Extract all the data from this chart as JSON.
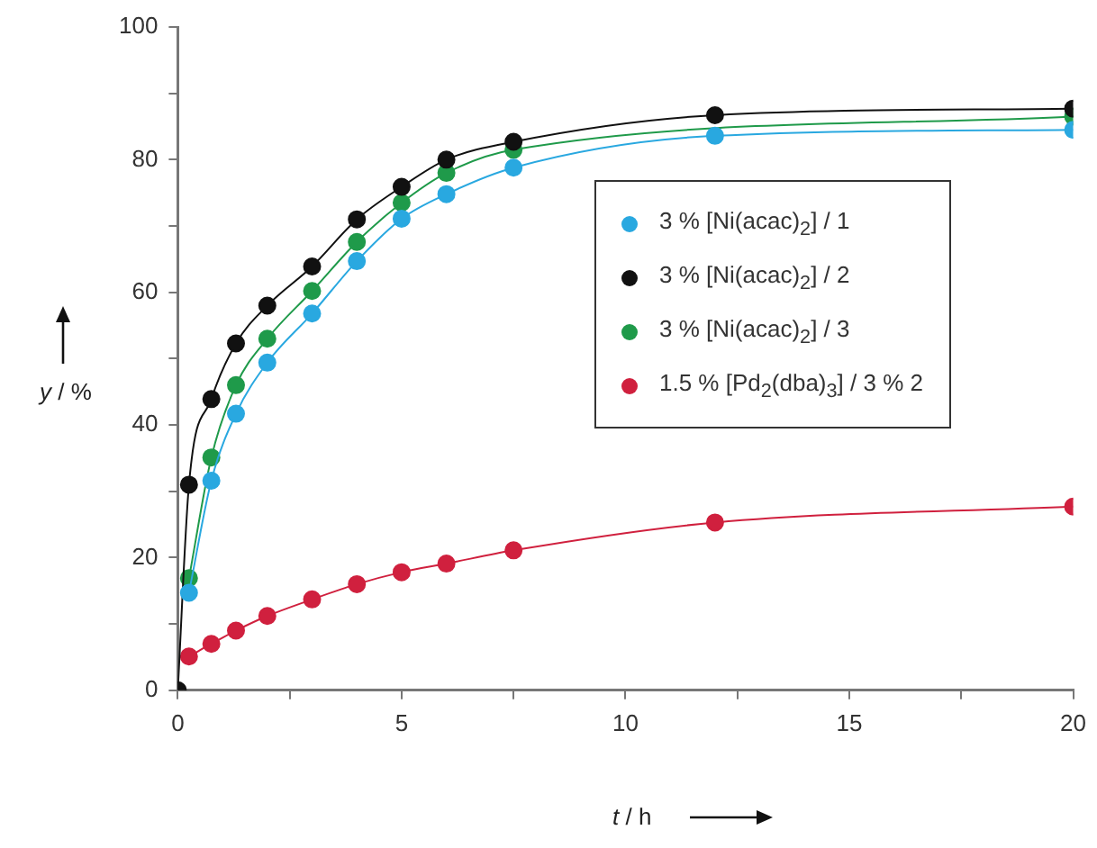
{
  "chart_data": {
    "type": "line",
    "xlabel": "t / h",
    "ylabel": "y / %",
    "xlim": [
      0,
      20
    ],
    "xticks": [
      0,
      {
        "value": 2.5,
        "label": null
      },
      5,
      {
        "value": 7.5,
        "label": null
      },
      10,
      {
        "value": 12.5,
        "label": null
      },
      15,
      {
        "value": 17.5,
        "label": null
      },
      20
    ],
    "ylim": [
      0,
      100
    ],
    "yticks": [
      0,
      {
        "value": 10,
        "label": null
      },
      20,
      {
        "value": 30,
        "label": null
      },
      40,
      {
        "value": 50,
        "label": null
      },
      60,
      {
        "value": 70,
        "label": null
      },
      80,
      {
        "value": 90,
        "label": null
      },
      100
    ],
    "grid": false,
    "legend": "right",
    "marker": "circle",
    "line_style": "solid",
    "series": [
      {
        "name": "3 % [Ni(acac)$_{2}$] / 1",
        "color": "#29a8e0",
        "x": [
          0.25,
          0.75,
          1.3,
          2,
          3,
          4,
          5,
          6,
          7.5,
          12,
          20
        ],
        "values": [
          14.7,
          31.6,
          41.7,
          49.4,
          56.8,
          64.7,
          71.1,
          74.8,
          78.8,
          83.6,
          84.5
        ]
      },
      {
        "name": "3 % [Ni(acac)$_{2}$] / 2",
        "color": "#111111",
        "x": [
          0,
          0.25,
          0.75,
          1.3,
          2,
          3,
          4,
          5,
          6,
          7.5,
          12,
          20
        ],
        "values": [
          0,
          31,
          43.9,
          52.3,
          58,
          63.9,
          71,
          75.9,
          80,
          82.7,
          86.7,
          87.7
        ]
      },
      {
        "name": "3 % [Ni(acac)$_{2}$] / 3",
        "color": "#1f9a4a",
        "x": [
          0.25,
          0.75,
          1.3,
          2,
          3,
          4,
          5,
          6,
          7.5,
          12,
          20
        ],
        "values": [
          16.9,
          35.1,
          46,
          53,
          60.2,
          67.6,
          73.5,
          78,
          81.5,
          null,
          86.5
        ]
      },
      {
        "name": "1.5 % [Pd$_{2}$(dba)$_{3}$] / 3 % 2",
        "color": "#d0203e",
        "x": [
          0.25,
          0.75,
          1.3,
          2,
          3,
          4,
          5,
          6,
          7.5,
          12,
          20
        ],
        "values": [
          5.1,
          7,
          9,
          11.2,
          13.7,
          16,
          17.8,
          19.1,
          21.1,
          25.3,
          27.7
        ]
      }
    ]
  }
}
